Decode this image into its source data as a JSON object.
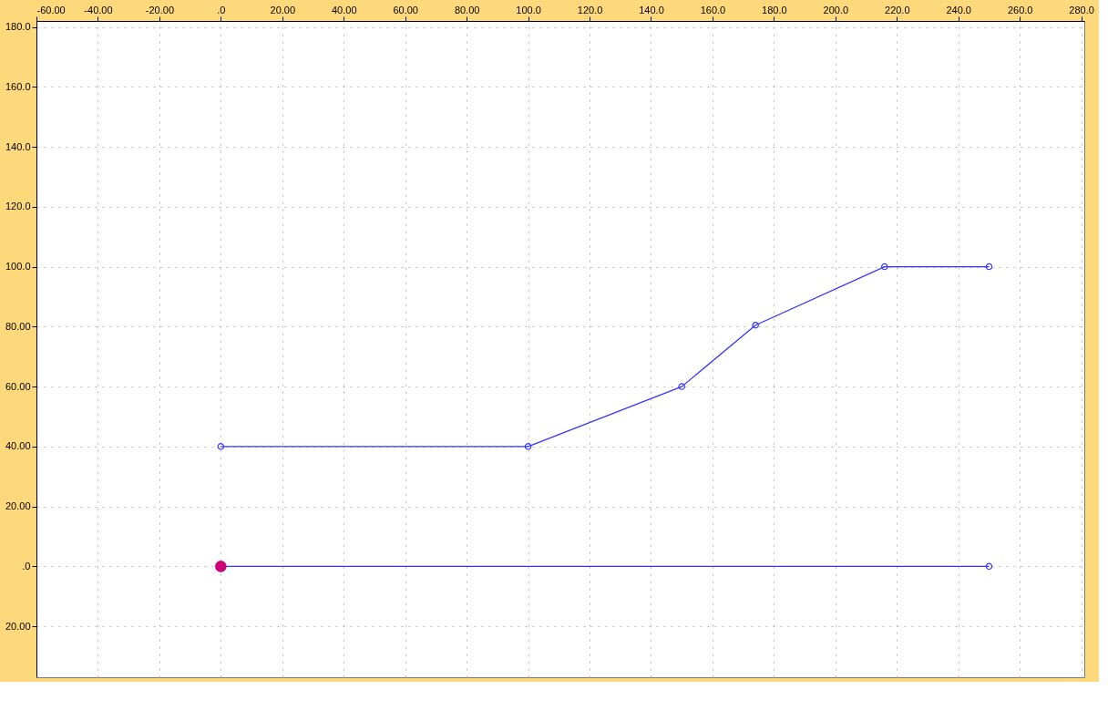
{
  "chart_data": {
    "type": "line",
    "series": [
      {
        "x": [
          0,
          100,
          150,
          174,
          216,
          250
        ],
        "values": [
          40,
          40,
          60,
          80.5,
          100,
          100
        ],
        "color": "#3333ff"
      },
      {
        "x": [
          0,
          250
        ],
        "values": [
          0,
          0
        ],
        "color": "#3333ff"
      },
      {
        "type": "scatter",
        "x": [
          0
        ],
        "values": [
          0
        ],
        "color": "#cc0077"
      }
    ],
    "xlim": [
      -60,
      281
    ],
    "ylim": [
      -37,
      182
    ],
    "xticks": [
      {
        "value": -60,
        "label": "-60.00"
      },
      {
        "value": -40,
        "label": "-40.00"
      },
      {
        "value": -20,
        "label": "-20.00"
      },
      {
        "value": 0,
        "label": ".0"
      },
      {
        "value": 20,
        "label": "20.00"
      },
      {
        "value": 40,
        "label": "40.00"
      },
      {
        "value": 60,
        "label": "60.00"
      },
      {
        "value": 80,
        "label": "80.00"
      },
      {
        "value": 100,
        "label": "100.0"
      },
      {
        "value": 120,
        "label": "120.0"
      },
      {
        "value": 140,
        "label": "140.0"
      },
      {
        "value": 160,
        "label": "160.0"
      },
      {
        "value": 180,
        "label": "180.0"
      },
      {
        "value": 200,
        "label": "200.0"
      },
      {
        "value": 220,
        "label": "220.0"
      },
      {
        "value": 240,
        "label": "240.0"
      },
      {
        "value": 260,
        "label": "260.0"
      },
      {
        "value": 280,
        "label": "280.0"
      }
    ],
    "yticks": [
      {
        "value": -20,
        "label": "20.00"
      },
      {
        "value": 0,
        "label": ".0"
      },
      {
        "value": 20,
        "label": "20.00"
      },
      {
        "value": 40,
        "label": "40.00"
      },
      {
        "value": 60,
        "label": "60.00"
      },
      {
        "value": 80,
        "label": "80.00"
      },
      {
        "value": 100,
        "label": "100.0"
      },
      {
        "value": 120,
        "label": "120.0"
      },
      {
        "value": 140,
        "label": "140.0"
      },
      {
        "value": 160,
        "label": "160.0"
      },
      {
        "value": 180,
        "label": "180.0"
      }
    ],
    "grid": true,
    "marker": "circle",
    "line_style": "solid"
  }
}
